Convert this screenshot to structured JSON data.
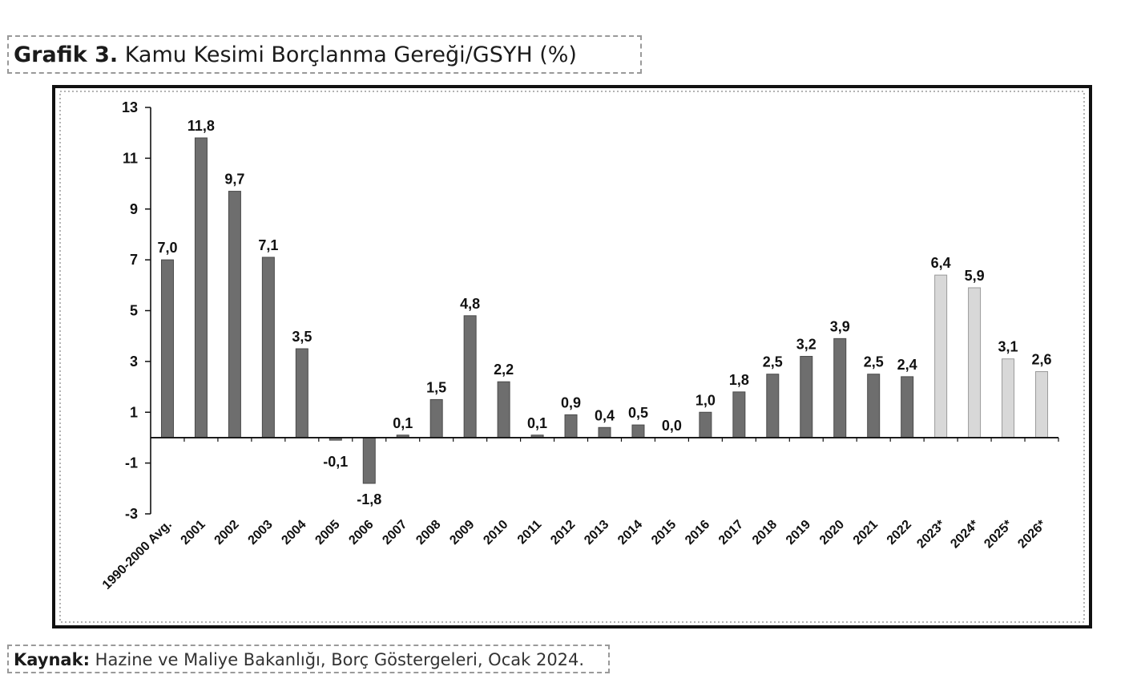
{
  "title": {
    "prefix": "Grafik 3.",
    "text": "Kamu Kesimi Borçlanma Gereği/GSYH (%)"
  },
  "source": {
    "prefix": "Kaynak:",
    "text": "Hazine ve Maliye Bakanlığı, Borç Göstergeleri, Ocak 2024."
  },
  "chart_data": {
    "type": "bar",
    "title": "Kamu Kesimi Borçlanma Gereği/GSYH (%)",
    "xlabel": "",
    "ylabel": "",
    "ylim": [
      -3,
      13
    ],
    "yticks": [
      13,
      11,
      9,
      7,
      5,
      3,
      1,
      -1,
      -3
    ],
    "grid": false,
    "legend": "none",
    "categories": [
      "1990-2000 Avg.",
      "2001",
      "2002",
      "2003",
      "2004",
      "2005",
      "2006",
      "2007",
      "2008",
      "2009",
      "2010",
      "2011",
      "2012",
      "2013",
      "2014",
      "2015",
      "2016",
      "2017",
      "2018",
      "2019",
      "2020",
      "2021",
      "2022",
      "2023*",
      "2024*",
      "2025*",
      "2026*"
    ],
    "values": [
      7.0,
      11.8,
      9.7,
      7.1,
      3.5,
      -0.1,
      -1.8,
      0.1,
      1.5,
      4.8,
      2.2,
      0.1,
      0.9,
      0.4,
      0.5,
      0.0,
      1.0,
      1.8,
      2.5,
      3.2,
      3.9,
      2.5,
      2.4,
      6.4,
      5.9,
      3.1,
      2.6
    ],
    "labels": [
      "7,0",
      "11,8",
      "9,7",
      "7,1",
      "3,5",
      "-0,1",
      "-1,8",
      "0,1",
      "1,5",
      "4,8",
      "2,2",
      "0,1",
      "0,9",
      "0,4",
      "0,5",
      "0,0",
      "1,0",
      "1,8",
      "2,5",
      "3,2",
      "3,9",
      "2,5",
      "2,4",
      "6,4",
      "5,9",
      "3,1",
      "2,6"
    ],
    "projected": [
      false,
      false,
      false,
      false,
      false,
      false,
      false,
      false,
      false,
      false,
      false,
      false,
      false,
      false,
      false,
      false,
      false,
      false,
      false,
      false,
      false,
      false,
      false,
      true,
      true,
      true,
      true
    ],
    "colors": {
      "actual": "#6e6e6e",
      "projected": "#d8d8d8",
      "axis": "#111111"
    }
  }
}
